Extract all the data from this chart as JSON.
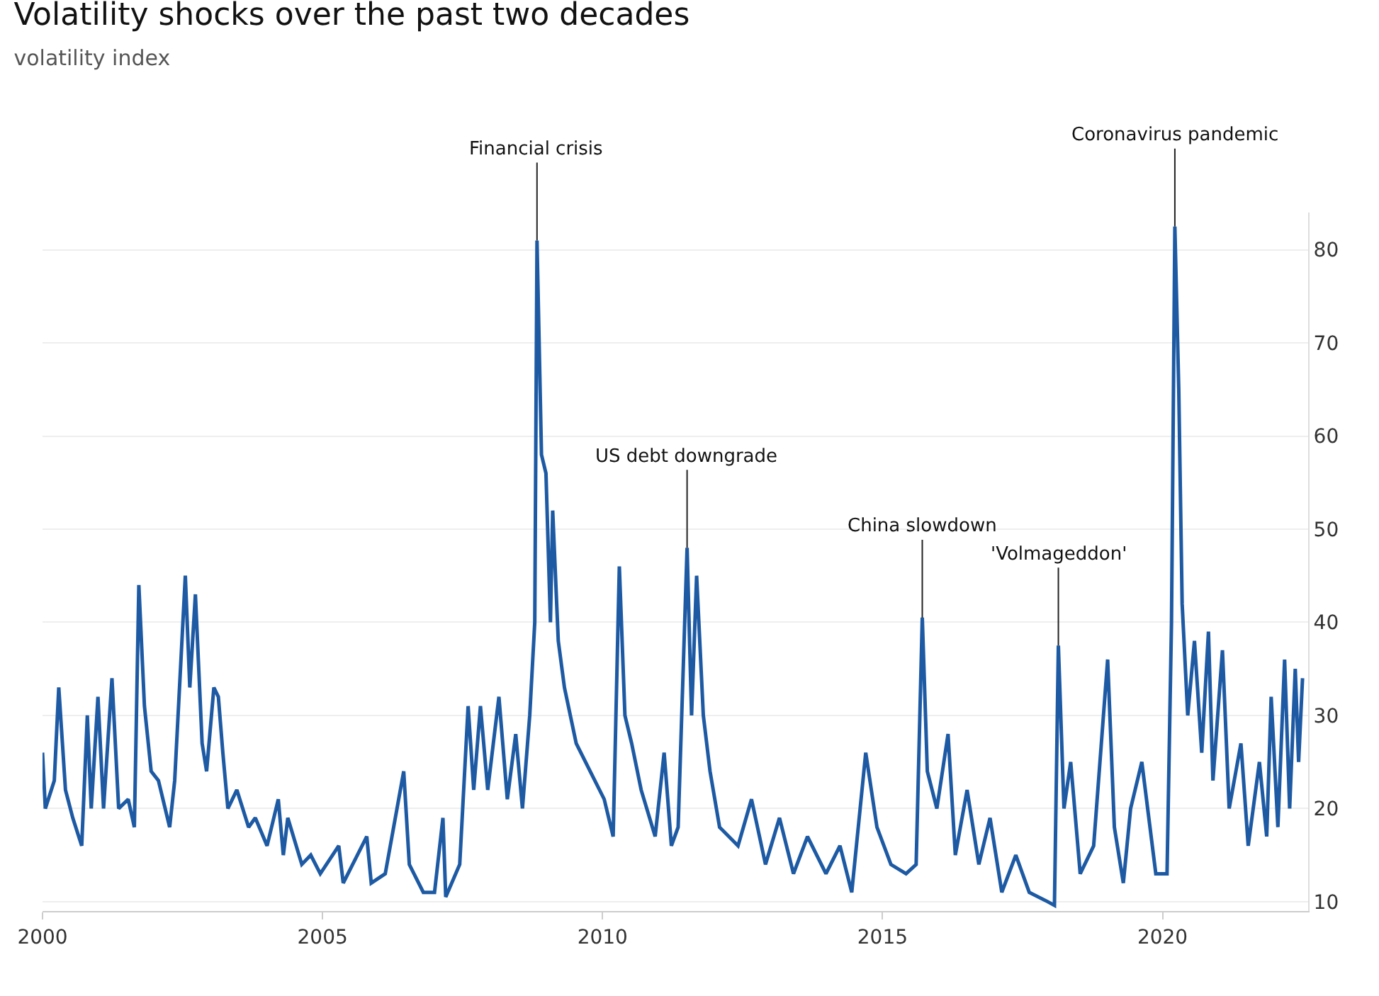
{
  "chart_data": {
    "type": "line",
    "title": "Volatility shocks over the past two decades",
    "subtitle": "volatility index",
    "x": [
      2000.0,
      2000.05,
      2000.21,
      2000.29,
      2000.41,
      2000.54,
      2000.7,
      2000.8,
      2000.87,
      2000.99,
      2001.09,
      2001.24,
      2001.36,
      2001.53,
      2001.64,
      2001.72,
      2001.82,
      2001.94,
      2002.07,
      2002.27,
      2002.36,
      2002.55,
      2002.63,
      2002.73,
      2002.85,
      2002.93,
      2003.06,
      2003.14,
      2003.22,
      2003.31,
      2003.47,
      2003.68,
      2003.8,
      2004.01,
      2004.21,
      2004.3,
      2004.38,
      2004.63,
      2004.79,
      2004.96,
      2005.29,
      2005.37,
      2005.79,
      2005.87,
      2006.12,
      2006.45,
      2006.55,
      2006.8,
      2007.0,
      2007.15,
      2007.2,
      2007.45,
      2007.6,
      2007.7,
      2007.82,
      2007.95,
      2008.15,
      2008.3,
      2008.45,
      2008.57,
      2008.7,
      2008.79,
      2008.83,
      2008.91,
      2008.99,
      2009.07,
      2009.11,
      2009.21,
      2009.32,
      2009.53,
      2009.78,
      2010.03,
      2010.19,
      2010.3,
      2010.4,
      2010.52,
      2010.69,
      2010.94,
      2011.1,
      2011.23,
      2011.35,
      2011.51,
      2011.59,
      2011.68,
      2011.8,
      2011.92,
      2012.09,
      2012.42,
      2012.66,
      2012.91,
      2013.16,
      2013.41,
      2013.66,
      2013.99,
      2014.24,
      2014.45,
      2014.7,
      2014.9,
      2015.15,
      2015.42,
      2015.6,
      2015.71,
      2015.8,
      2015.97,
      2016.17,
      2016.3,
      2016.51,
      2016.72,
      2016.92,
      2017.13,
      2017.38,
      2017.62,
      2017.95,
      2018.07,
      2018.14,
      2018.24,
      2018.36,
      2018.53,
      2018.77,
      2019.02,
      2019.14,
      2019.3,
      2019.43,
      2019.63,
      2019.88,
      2020.08,
      2020.16,
      2020.22,
      2020.29,
      2020.35,
      2020.45,
      2020.57,
      2020.7,
      2020.82,
      2020.9,
      2021.07,
      2021.19,
      2021.4,
      2021.53,
      2021.73,
      2021.86,
      2021.94,
      2022.06,
      2022.18,
      2022.27,
      2022.37,
      2022.43,
      2022.5
    ],
    "series": [
      {
        "color": "#1d5aa3",
        "values": [
          26,
          20,
          23,
          33,
          22,
          19,
          16,
          30,
          20,
          32,
          20,
          34,
          20,
          21,
          18,
          44,
          31,
          24,
          23,
          18,
          23,
          45,
          33,
          43,
          27,
          24,
          33,
          32,
          26,
          20,
          22,
          18,
          19,
          16,
          21,
          15,
          19,
          14,
          15,
          13,
          16,
          12,
          17,
          12,
          13,
          24,
          14,
          11,
          11,
          19,
          10.5,
          14,
          31,
          22,
          31,
          22,
          32,
          21,
          28,
          20,
          30,
          40,
          81,
          58,
          56,
          40,
          52,
          38,
          33,
          27,
          24,
          21,
          17,
          46,
          30,
          27,
          22,
          17,
          26,
          16,
          18,
          48,
          30,
          45,
          30,
          24,
          18,
          16,
          21,
          14,
          19,
          13,
          17,
          13,
          16,
          11,
          26,
          18,
          14,
          13,
          14,
          40.5,
          24,
          20,
          28,
          15,
          22,
          14,
          19,
          11,
          15,
          11,
          10,
          9.6,
          37.5,
          20,
          25,
          13,
          16,
          36,
          18,
          12,
          20,
          25,
          13,
          13,
          40,
          82.5,
          65,
          42,
          30,
          38,
          26,
          39,
          23,
          37,
          20,
          27,
          16,
          25,
          17,
          32,
          18,
          36,
          20,
          35,
          25,
          34
        ]
      }
    ],
    "xlim": [
      2000,
      2022.6
    ],
    "xticks": [
      2000,
      2005,
      2010,
      2015,
      2020
    ],
    "ylim": [
      9,
      84
    ],
    "yticks": [
      10,
      20,
      30,
      40,
      50,
      60,
      70,
      80
    ],
    "grid": "y",
    "annotations": [
      {
        "text": "Financial crisis",
        "x": 2008.83,
        "y": 81
      },
      {
        "text": "US debt downgrade",
        "x": 2011.51,
        "y": 48
      },
      {
        "text": "China slowdown",
        "x": 2015.71,
        "y": 40.5
      },
      {
        "text": "'Volmageddon'",
        "x": 2018.14,
        "y": 37.5
      },
      {
        "text": "Coronavirus pandemic",
        "x": 2020.22,
        "y": 82.5
      }
    ]
  }
}
